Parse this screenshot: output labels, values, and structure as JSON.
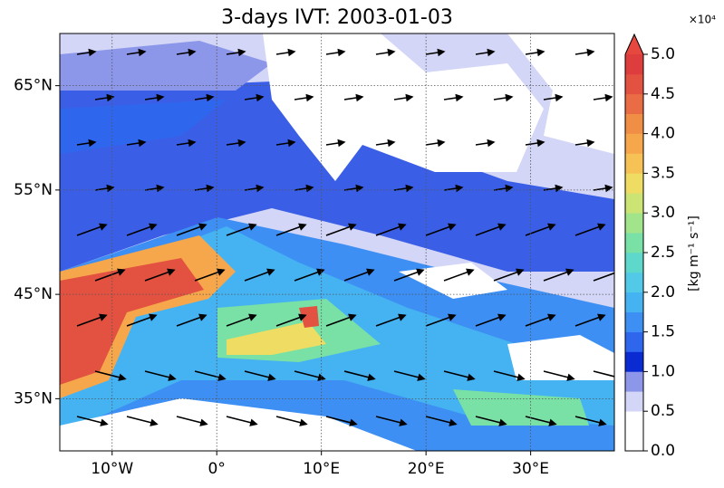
{
  "title": "3-days IVT: 2003-01-03",
  "map": {
    "xlim": [
      -15,
      38
    ],
    "ylim": [
      30,
      70
    ],
    "xticks": [
      {
        "value": -10,
        "label": "10°W"
      },
      {
        "value": 0,
        "label": "0°"
      },
      {
        "value": 10,
        "label": "10°E"
      },
      {
        "value": 20,
        "label": "20°E"
      },
      {
        "value": 30,
        "label": "30°E"
      }
    ],
    "yticks": [
      {
        "value": 35,
        "label": "35°N"
      },
      {
        "value": 45,
        "label": "45°N"
      },
      {
        "value": 55,
        "label": "55°N"
      },
      {
        "value": 65,
        "label": "65°N"
      }
    ]
  },
  "colorbar": {
    "label": "[kg m⁻¹ s⁻¹]",
    "multiplier": "×10⁴",
    "lim": [
      0,
      5
    ],
    "ticks": [
      {
        "value": 0,
        "label": "0.0"
      },
      {
        "value": 0.5,
        "label": "0.5"
      },
      {
        "value": 1,
        "label": "1.0"
      },
      {
        "value": 1.5,
        "label": "1.5"
      },
      {
        "value": 2,
        "label": "2.0"
      },
      {
        "value": 2.5,
        "label": "2.5"
      },
      {
        "value": 3,
        "label": "3.0"
      },
      {
        "value": 3.5,
        "label": "3.5"
      },
      {
        "value": 4,
        "label": "4.0"
      },
      {
        "value": 4.5,
        "label": "4.5"
      },
      {
        "value": 5,
        "label": "5.0"
      }
    ],
    "colors": [
      "#ffffff",
      "#ffffff",
      "#d3d6f6",
      "#8d97e9",
      "#0a2ad2",
      "#2f66ee",
      "#3d8ff3",
      "#45b2f2",
      "#52c9e6",
      "#5fd8cc",
      "#79e0a6",
      "#a2e48a",
      "#cce473",
      "#eedd62",
      "#f6c255",
      "#f6a74c",
      "#f18e46",
      "#ea6c44",
      "#e35141",
      "#dd3e3d"
    ],
    "extend_color": "#e6473f"
  }
}
